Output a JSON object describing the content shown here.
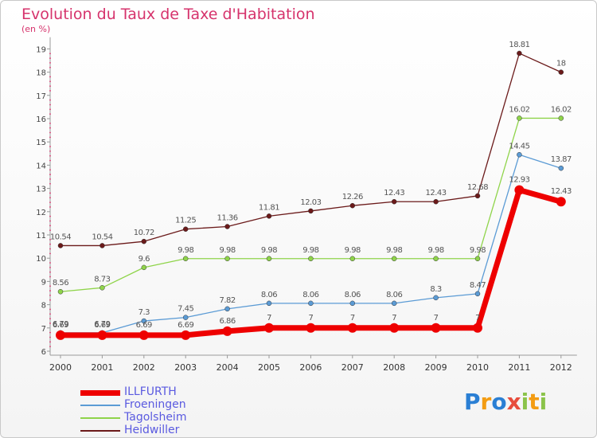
{
  "chart_data": {
    "type": "line",
    "title": "Evolution du Taux de Taxe d'Habitation",
    "subtitle": "(en %)",
    "x": [
      "2000",
      "2001",
      "2002",
      "2003",
      "2004",
      "2005",
      "2006",
      "2007",
      "2008",
      "2009",
      "2010",
      "2011",
      "2012"
    ],
    "yticks": [
      "6",
      "7",
      "8",
      "9",
      "10",
      "11",
      "12",
      "13",
      "14",
      "15",
      "16",
      "17",
      "18",
      "19"
    ],
    "ylim": [
      6,
      19.5
    ],
    "grid": false,
    "legend_position": "bottom-left",
    "series": [
      {
        "name": "Heidwiller",
        "color": "#6b1a1a",
        "values": [
          10.54,
          10.54,
          10.72,
          11.25,
          11.36,
          11.81,
          12.03,
          12.26,
          12.43,
          12.43,
          12.68,
          18.81,
          18
        ],
        "labels": [
          "10.54",
          "10.54",
          "10.72",
          "11.25",
          "11.36",
          "11.81",
          "12.03",
          "12.26",
          "12.43",
          "12.43",
          "12.68",
          "18.81",
          "18"
        ]
      },
      {
        "name": "Tagolsheim",
        "color": "#8fd44a",
        "values": [
          8.56,
          8.73,
          9.6,
          9.98,
          9.98,
          9.98,
          9.98,
          9.98,
          9.98,
          9.98,
          9.98,
          16.02,
          16.02
        ],
        "labels": [
          "8.56",
          "8.73",
          "9.6",
          "9.98",
          "9.98",
          "9.98",
          "9.98",
          "9.98",
          "9.98",
          "9.98",
          "9.98",
          "16.02",
          "16.02"
        ]
      },
      {
        "name": "Froeningen",
        "color": "#5b9bd5",
        "values": [
          6.79,
          6.79,
          7.3,
          7.45,
          7.82,
          8.06,
          8.06,
          8.06,
          8.06,
          8.3,
          8.47,
          14.45,
          13.87
        ],
        "labels": [
          "6.79",
          "6.79",
          "7.3",
          "7.45",
          "7.82",
          "8.06",
          "8.06",
          "8.06",
          "8.06",
          "8.3",
          "8.47",
          "14.45",
          "13.87"
        ]
      },
      {
        "name": "ILLFURTH",
        "color": "#ee0000",
        "values": [
          6.69,
          6.69,
          6.69,
          6.69,
          6.86,
          7,
          7,
          7,
          7,
          7,
          7,
          12.93,
          12.43
        ],
        "labels": [
          "6.69",
          "6.69",
          "6.69",
          "6.69",
          "6.86",
          "7",
          "7",
          "7",
          "7",
          "7",
          "7",
          "12.93",
          "12.43"
        ]
      }
    ]
  },
  "legend": {
    "items": [
      {
        "label": "ILLFURTH",
        "color": "#ee0000",
        "thick": true
      },
      {
        "label": "Froeningen",
        "color": "#5b9bd5",
        "thick": false
      },
      {
        "label": "Tagolsheim",
        "color": "#8fd44a",
        "thick": false
      },
      {
        "label": "Heidwiller",
        "color": "#6b1a1a",
        "thick": false
      }
    ]
  },
  "brand": {
    "letters": [
      "P",
      "r",
      "o",
      "x",
      "i",
      "t",
      "i"
    ],
    "colors": [
      "#2a7fd4",
      "#f39c12",
      "#2a7fd4",
      "#e74c3c",
      "#8bc34a",
      "#f39c12",
      "#8bc34a"
    ]
  }
}
